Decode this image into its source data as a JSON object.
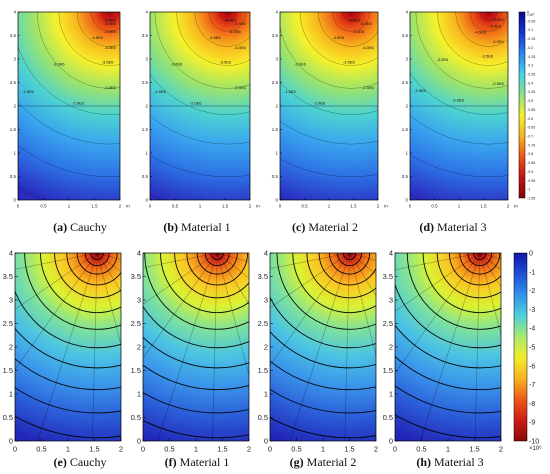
{
  "colors": {
    "plate_top": [
      "#2a2dc0",
      "#2d72e5",
      "#3aa6ee",
      "#4dd3d0",
      "#9ee46a",
      "#f6f12a",
      "#f8b41d",
      "#ef5a17",
      "#c81314",
      "#8e0b0b"
    ],
    "plate_bottom": [
      "#2226b8",
      "#2b5fd9",
      "#3b96ea",
      "#4cc4e3",
      "#7ee29b",
      "#dbf233",
      "#fbc823",
      "#f27a1a",
      "#d9221a",
      "#8e0b0b"
    ],
    "far_field": "#3a8fdc",
    "contour_line": "#000000",
    "axis_text": "#222222"
  },
  "chart_data": [
    {
      "id": "a",
      "panel": "(a)",
      "caption": "Cauchy",
      "type": "heatmap",
      "x": [
        0,
        0.5,
        1,
        1.5,
        2
      ],
      "y": [
        0,
        0.5,
        1,
        1.5,
        2,
        2.5,
        3,
        3.5,
        4
      ],
      "xlabel": "m",
      "ylabel": "",
      "xlim": [
        0,
        2
      ],
      "ylim": [
        0,
        4
      ],
      "colorbar": false,
      "stress_source_x": 1.8,
      "stress_source_y": 4.0,
      "contour_labels": [
        "-1.5E6",
        "-2.0E6",
        "-2.5E6",
        "-3.0E6",
        "-3.5E6",
        "-4.0E6",
        "-4.5E6",
        "-5.0E6",
        "-5.5E6",
        "-6.0E6"
      ]
    },
    {
      "id": "b",
      "panel": "(b)",
      "caption": "Material 1",
      "type": "heatmap",
      "x": [
        0,
        0.5,
        1,
        1.5,
        2
      ],
      "y": [
        0,
        0.5,
        1,
        1.5,
        2,
        2.5,
        3,
        3.5,
        4
      ],
      "xlabel": "m",
      "ylabel": "",
      "xlim": [
        0,
        2
      ],
      "ylim": [
        0,
        4
      ],
      "colorbar": false,
      "stress_source_x": 1.55,
      "stress_source_y": 4.0,
      "contour_labels": [
        "-1.5E6",
        "-2.0E6",
        "-2.5E6",
        "-3.0E6",
        "-3.5E6",
        "-4.0E6",
        "-4.5E6",
        "-5.0E6",
        "-5.5E6",
        "-6.0E6"
      ]
    },
    {
      "id": "c",
      "panel": "(c)",
      "caption": "Material 2",
      "type": "heatmap",
      "x": [
        0,
        0.5,
        1,
        1.5,
        2
      ],
      "y": [
        0,
        0.5,
        1,
        1.5,
        2,
        2.5,
        3,
        3.5,
        4
      ],
      "xlabel": "m",
      "ylabel": "",
      "xlim": [
        0,
        2
      ],
      "ylim": [
        0,
        4
      ],
      "colorbar": false,
      "stress_source_x": 1.45,
      "stress_source_y": 4.0,
      "contour_labels": [
        "-1.5E6",
        "-2.0E6",
        "-2.5E6",
        "-3.0E6",
        "-3.5E6",
        "-4.0E6",
        "-4.5E6",
        "-5.0E6",
        "-5.5E6",
        "-6.0E6"
      ]
    },
    {
      "id": "d",
      "panel": "(d)",
      "caption": "Material 3",
      "type": "heatmap",
      "x": [
        0,
        0.5,
        1,
        1.5,
        2
      ],
      "y": [
        0,
        0.5,
        1,
        1.5,
        2,
        2.5,
        3,
        3.5,
        4
      ],
      "xlabel": "m",
      "ylabel": "",
      "xlim": [
        0,
        2
      ],
      "ylim": [
        0,
        4
      ],
      "colorbar": true,
      "stress_source_x": 1.6,
      "stress_source_y": 4.0,
      "colorbar_exponent": "×10⁶",
      "colorbar_ticks": [
        "0",
        "-0.05",
        "-0.1",
        "-0.15",
        "-0.2",
        "-0.25",
        "-0.3",
        "-0.35",
        "-0.4",
        "-0.45",
        "-0.5",
        "-0.55",
        "-0.6",
        "-0.65",
        "-0.7",
        "-0.75",
        "-0.8",
        "-0.85",
        "-0.9",
        "-0.95",
        "-1",
        "-1.05"
      ],
      "contour_labels": [
        "-1.5E6",
        "-2.0E6",
        "-2.5E6",
        "-3.0E6",
        "-3.5E6",
        "-4.0E6",
        "-4.5E6",
        "-5.0E6",
        "-5.5E6"
      ]
    },
    {
      "id": "e",
      "panel": "(e)",
      "caption": "Cauchy",
      "type": "heatmap",
      "x": [
        0,
        0.5,
        1,
        1.5,
        2
      ],
      "y": [
        0,
        0.5,
        1,
        1.5,
        2,
        2.5,
        3,
        3.5,
        4
      ],
      "xlabel": "",
      "ylabel": "",
      "xlim": [
        0,
        2
      ],
      "ylim": [
        0,
        4
      ],
      "colorbar": false,
      "stress_source_x": 1.55,
      "stress_source_y": 4.0
    },
    {
      "id": "f",
      "panel": "(f)",
      "caption": "Material 1",
      "type": "heatmap",
      "x": [
        0,
        0.5,
        1,
        1.5,
        2
      ],
      "y": [
        0,
        0.5,
        1,
        1.5,
        2,
        2.5,
        3,
        3.5,
        4
      ],
      "xlabel": "",
      "ylabel": "",
      "xlim": [
        0,
        2
      ],
      "ylim": [
        0,
        4
      ],
      "colorbar": false,
      "stress_source_x": 1.4,
      "stress_source_y": 4.0
    },
    {
      "id": "g",
      "panel": "(g)",
      "caption": "Material 2",
      "type": "heatmap",
      "x": [
        0,
        0.5,
        1,
        1.5,
        2
      ],
      "y": [
        0,
        0.5,
        1,
        1.5,
        2,
        2.5,
        3,
        3.5,
        4
      ],
      "xlabel": "",
      "ylabel": "",
      "xlim": [
        0,
        2
      ],
      "ylim": [
        0,
        4
      ],
      "colorbar": false,
      "stress_source_x": 1.5,
      "stress_source_y": 4.0
    },
    {
      "id": "h",
      "panel": "(h)",
      "caption": "Material 3",
      "type": "heatmap",
      "x": [
        0,
        0.5,
        1,
        1.5,
        2
      ],
      "y": [
        0,
        0.5,
        1,
        1.5,
        2,
        2.5,
        3,
        3.5,
        4
      ],
      "xlabel": "",
      "ylabel": "",
      "xlim": [
        0,
        2
      ],
      "ylim": [
        0,
        4
      ],
      "colorbar": true,
      "stress_source_x": 1.6,
      "stress_source_y": 4.0,
      "colorbar_exponent": "×10⁶",
      "colorbar_ticks": [
        "0",
        "-1",
        "-2",
        "-3",
        "-4",
        "-5",
        "-6",
        "-7",
        "-8",
        "-9",
        "-10"
      ]
    }
  ]
}
